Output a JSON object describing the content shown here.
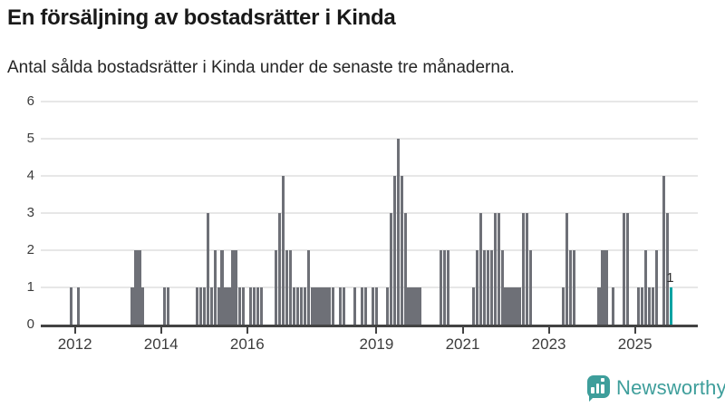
{
  "header": {
    "title": "En försäljning av bostadsrätter i Kinda",
    "subtitle": "Antal sålda bostadsrätter i Kinda under de senaste tre månaderna."
  },
  "branding": {
    "logo_text": "Newsworthy",
    "logo_color": "#3e9e9b",
    "logo_icon": "bar-chart-speech-bubble-icon"
  },
  "chart_data": {
    "type": "bar",
    "title": "En försäljning av bostadsrätter i Kinda",
    "subtitle": "Antal sålda bostadsrätter i Kinda under de senaste tre månaderna.",
    "xlabel": "",
    "ylabel": "",
    "ylim": [
      0,
      6
    ],
    "yticks": [
      0,
      1,
      2,
      3,
      4,
      5,
      6
    ],
    "grid": true,
    "bar_color": "#6e7077",
    "highlight_color": "#00a3a3",
    "x_axis": {
      "start_month": "2011-04",
      "end_month": "2026-06",
      "year_tick_labels": [
        "2012",
        "2014",
        "2016",
        "2019",
        "2021",
        "2023",
        "2025"
      ]
    },
    "annotation": {
      "text": "1",
      "month": "2025-11"
    },
    "points": [
      {
        "m": "2011-12",
        "v": 1
      },
      {
        "m": "2012-02",
        "v": 1
      },
      {
        "m": "2013-05",
        "v": 1
      },
      {
        "m": "2013-06",
        "v": 2
      },
      {
        "m": "2013-07",
        "v": 2
      },
      {
        "m": "2013-08",
        "v": 1
      },
      {
        "m": "2014-02",
        "v": 1
      },
      {
        "m": "2014-03",
        "v": 1
      },
      {
        "m": "2014-11",
        "v": 1
      },
      {
        "m": "2014-12",
        "v": 1
      },
      {
        "m": "2015-01",
        "v": 1
      },
      {
        "m": "2015-02",
        "v": 3
      },
      {
        "m": "2015-03",
        "v": 1
      },
      {
        "m": "2015-04",
        "v": 2
      },
      {
        "m": "2015-05",
        "v": 1
      },
      {
        "m": "2015-06",
        "v": 2
      },
      {
        "m": "2015-07",
        "v": 1
      },
      {
        "m": "2015-08",
        "v": 1
      },
      {
        "m": "2015-09",
        "v": 2
      },
      {
        "m": "2015-10",
        "v": 2
      },
      {
        "m": "2015-11",
        "v": 1
      },
      {
        "m": "2015-12",
        "v": 1
      },
      {
        "m": "2016-02",
        "v": 1
      },
      {
        "m": "2016-03",
        "v": 1
      },
      {
        "m": "2016-04",
        "v": 1
      },
      {
        "m": "2016-05",
        "v": 1
      },
      {
        "m": "2016-09",
        "v": 2
      },
      {
        "m": "2016-10",
        "v": 3
      },
      {
        "m": "2016-11",
        "v": 4
      },
      {
        "m": "2016-12",
        "v": 2
      },
      {
        "m": "2017-01",
        "v": 2
      },
      {
        "m": "2017-02",
        "v": 1
      },
      {
        "m": "2017-03",
        "v": 1
      },
      {
        "m": "2017-04",
        "v": 1
      },
      {
        "m": "2017-05",
        "v": 1
      },
      {
        "m": "2017-06",
        "v": 2
      },
      {
        "m": "2017-07",
        "v": 1
      },
      {
        "m": "2017-08",
        "v": 1
      },
      {
        "m": "2017-09",
        "v": 1
      },
      {
        "m": "2017-10",
        "v": 1
      },
      {
        "m": "2017-11",
        "v": 1
      },
      {
        "m": "2017-12",
        "v": 1
      },
      {
        "m": "2018-01",
        "v": 1
      },
      {
        "m": "2018-03",
        "v": 1
      },
      {
        "m": "2018-04",
        "v": 1
      },
      {
        "m": "2018-07",
        "v": 1
      },
      {
        "m": "2018-09",
        "v": 1
      },
      {
        "m": "2018-10",
        "v": 1
      },
      {
        "m": "2018-12",
        "v": 1
      },
      {
        "m": "2019-01",
        "v": 1
      },
      {
        "m": "2019-04",
        "v": 1
      },
      {
        "m": "2019-05",
        "v": 3
      },
      {
        "m": "2019-06",
        "v": 4
      },
      {
        "m": "2019-07",
        "v": 5
      },
      {
        "m": "2019-08",
        "v": 4
      },
      {
        "m": "2019-09",
        "v": 3
      },
      {
        "m": "2019-10",
        "v": 1
      },
      {
        "m": "2019-11",
        "v": 1
      },
      {
        "m": "2019-12",
        "v": 1
      },
      {
        "m": "2020-01",
        "v": 1
      },
      {
        "m": "2020-07",
        "v": 2
      },
      {
        "m": "2020-08",
        "v": 2
      },
      {
        "m": "2020-09",
        "v": 2
      },
      {
        "m": "2021-04",
        "v": 1
      },
      {
        "m": "2021-05",
        "v": 2
      },
      {
        "m": "2021-06",
        "v": 3
      },
      {
        "m": "2021-07",
        "v": 2
      },
      {
        "m": "2021-08",
        "v": 2
      },
      {
        "m": "2021-09",
        "v": 2
      },
      {
        "m": "2021-10",
        "v": 3
      },
      {
        "m": "2021-11",
        "v": 3
      },
      {
        "m": "2021-12",
        "v": 2
      },
      {
        "m": "2022-01",
        "v": 1
      },
      {
        "m": "2022-02",
        "v": 1
      },
      {
        "m": "2022-03",
        "v": 1
      },
      {
        "m": "2022-04",
        "v": 1
      },
      {
        "m": "2022-05",
        "v": 1
      },
      {
        "m": "2022-06",
        "v": 3
      },
      {
        "m": "2022-07",
        "v": 3
      },
      {
        "m": "2022-08",
        "v": 2
      },
      {
        "m": "2023-05",
        "v": 1
      },
      {
        "m": "2023-06",
        "v": 3
      },
      {
        "m": "2023-07",
        "v": 2
      },
      {
        "m": "2023-08",
        "v": 2
      },
      {
        "m": "2024-03",
        "v": 1
      },
      {
        "m": "2024-04",
        "v": 2
      },
      {
        "m": "2024-05",
        "v": 2
      },
      {
        "m": "2024-07",
        "v": 1
      },
      {
        "m": "2024-10",
        "v": 3
      },
      {
        "m": "2024-11",
        "v": 3
      },
      {
        "m": "2025-02",
        "v": 1
      },
      {
        "m": "2025-03",
        "v": 1
      },
      {
        "m": "2025-04",
        "v": 2
      },
      {
        "m": "2025-05",
        "v": 1
      },
      {
        "m": "2025-06",
        "v": 1
      },
      {
        "m": "2025-07",
        "v": 2
      },
      {
        "m": "2025-09",
        "v": 4
      },
      {
        "m": "2025-10",
        "v": 3
      },
      {
        "m": "2025-11",
        "v": 1,
        "highlight": true
      }
    ]
  }
}
